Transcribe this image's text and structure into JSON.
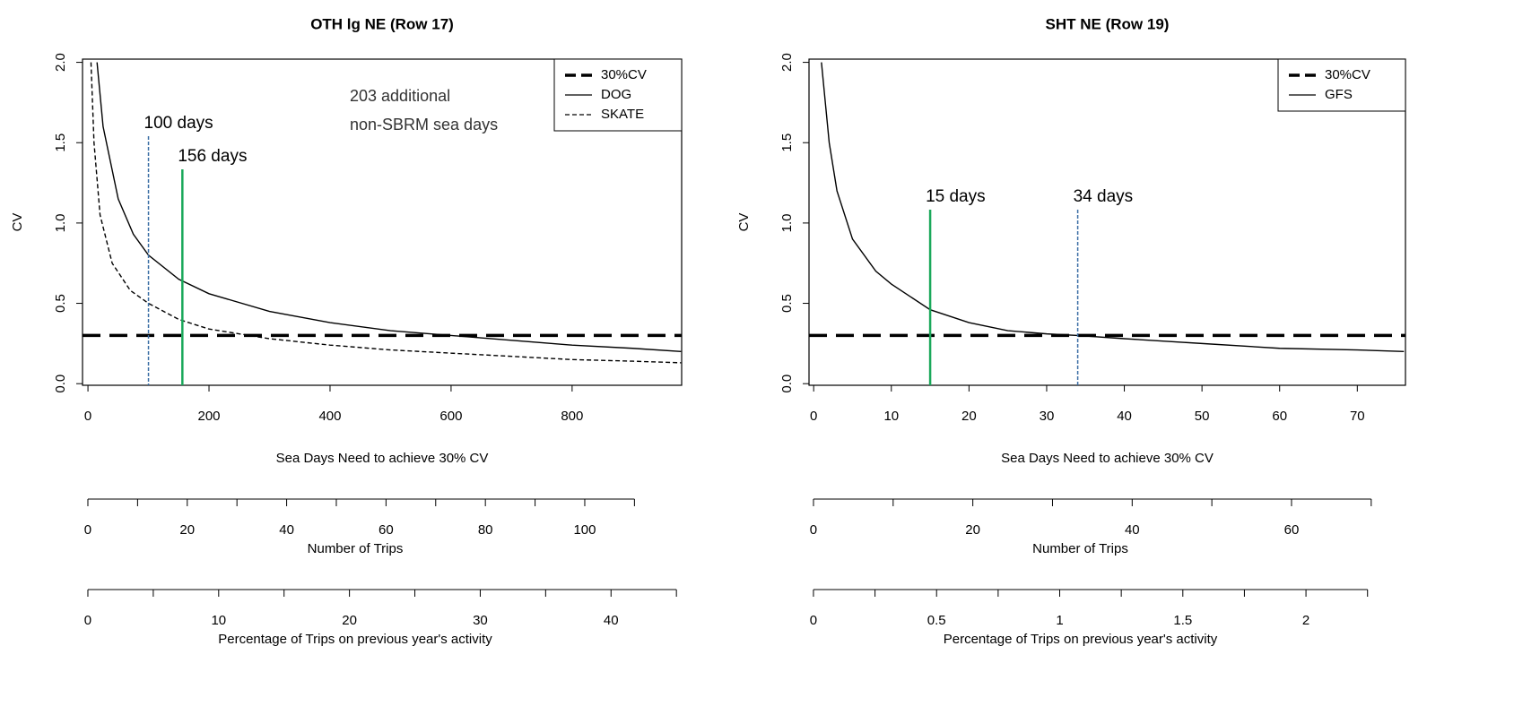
{
  "chart_data": [
    {
      "type": "line",
      "title": "OTH lg NE (Row 17)",
      "x_label": "Sea Days Need to achieve 30% CV",
      "y_label": "CV",
      "xlim": [
        -9,
        981
      ],
      "ylim": [
        -0.01,
        2.02
      ],
      "xticks": [
        0,
        200,
        400,
        600,
        800
      ],
      "yticks": [
        {
          "value": 0,
          "label": "0.0"
        },
        0.5,
        {
          "value": 1,
          "label": "1.0"
        },
        1.5,
        {
          "value": 2,
          "label": "2.0"
        }
      ],
      "legend": "top-right",
      "reference_line": {
        "name": "30%CV",
        "value": 0.3,
        "color": "#000000"
      },
      "series": [
        {
          "name": "DOG",
          "color": "#000000",
          "dash": false,
          "x": [
            15,
            25,
            50,
            75,
            100,
            150,
            200,
            300,
            400,
            500,
            600,
            700,
            800,
            900,
            980
          ],
          "values": [
            2.0,
            1.6,
            1.15,
            0.93,
            0.8,
            0.65,
            0.56,
            0.45,
            0.38,
            0.33,
            0.3,
            0.27,
            0.24,
            0.22,
            0.2
          ]
        },
        {
          "name": "SKATE",
          "color": "#000000",
          "dash": true,
          "x": [
            5,
            10,
            20,
            40,
            70,
            100,
            150,
            200,
            300,
            400,
            500,
            600,
            700,
            800,
            900,
            980
          ],
          "values": [
            2.0,
            1.5,
            1.05,
            0.75,
            0.58,
            0.5,
            0.4,
            0.34,
            0.28,
            0.24,
            0.21,
            0.19,
            0.17,
            0.15,
            0.14,
            0.13
          ]
        }
      ],
      "markers": [
        {
          "x": 100,
          "label": "100 days",
          "color": "#3b6ea5",
          "dash": true
        },
        {
          "x": 156,
          "label": "156 days",
          "color": "#1aa85a",
          "dash": false
        }
      ],
      "annotation": [
        "203 additional",
        "non-SBRM sea days"
      ],
      "secondary_axes": [
        {
          "label": "Number of Trips",
          "xlim": [
            -1.08,
            119.5
          ],
          "ticks": [
            0,
            20,
            40,
            60,
            80,
            100
          ],
          "minor_ticks": [
            10,
            30,
            50,
            70,
            90,
            110
          ]
        },
        {
          "label": "Percentage of Trips on previous year's activity",
          "xlim": [
            -0.41,
            45.4
          ],
          "ticks": [
            0,
            10,
            20,
            30,
            40
          ],
          "minor_ticks": [
            5,
            15,
            25,
            35,
            45
          ]
        }
      ]
    },
    {
      "type": "line",
      "title": "SHT NE (Row 19)",
      "x_label": "Sea Days Need to achieve 30% CV",
      "y_label": "CV",
      "xlim": [
        -0.6,
        76.2
      ],
      "ylim": [
        -0.01,
        2.02
      ],
      "xticks": [
        0,
        10,
        20,
        30,
        40,
        50,
        60,
        70
      ],
      "yticks": [
        {
          "value": 0,
          "label": "0.0"
        },
        0.5,
        {
          "value": 1,
          "label": "1.0"
        },
        1.5,
        {
          "value": 2,
          "label": "2.0"
        }
      ],
      "legend": "top-right",
      "reference_line": {
        "name": "30%CV",
        "value": 0.3,
        "color": "#000000"
      },
      "series": [
        {
          "name": "GFS",
          "color": "#000000",
          "dash": false,
          "x": [
            1,
            2,
            3,
            5,
            8,
            10,
            15,
            20,
            25,
            30,
            34,
            40,
            50,
            60,
            70,
            76
          ],
          "values": [
            2.0,
            1.5,
            1.2,
            0.9,
            0.7,
            0.62,
            0.46,
            0.38,
            0.33,
            0.31,
            0.3,
            0.28,
            0.25,
            0.22,
            0.21,
            0.2
          ]
        }
      ],
      "markers": [
        {
          "x": 15,
          "label": "15 days",
          "color": "#1aa85a",
          "dash": false
        },
        {
          "x": 34,
          "label": "34 days",
          "color": "#3b6ea5",
          "dash": true
        }
      ],
      "secondary_axes": [
        {
          "label": "Number of Trips",
          "xlim": [
            -0.56,
            74.3
          ],
          "ticks": [
            0,
            20,
            40,
            60
          ],
          "minor_ticks": [
            10,
            30,
            50,
            70
          ]
        },
        {
          "label": "Percentage of Trips on previous year's activity",
          "xlim": [
            -0.018,
            2.404
          ],
          "ticks": [
            0,
            0.5,
            1,
            1.5,
            2
          ],
          "minor_ticks": [
            0.25,
            0.75,
            1.25,
            1.75,
            2.25
          ]
        }
      ]
    }
  ]
}
